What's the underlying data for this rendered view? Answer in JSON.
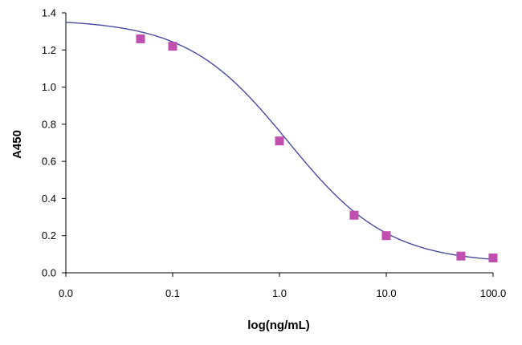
{
  "chart_data": {
    "type": "scatter",
    "title": "",
    "xlabel": "log(ng/mL)",
    "ylabel": "A450",
    "x_scale": "log",
    "x_ticks": [
      "0.0",
      "0.1",
      "1.0",
      "10.0",
      "100.0"
    ],
    "y_ticks": [
      "0.0",
      "0.2",
      "0.4",
      "0.6",
      "0.8",
      "1.0",
      "1.2",
      "1.4"
    ],
    "ylim": [
      0,
      1.4
    ],
    "grid": false,
    "legend": "none",
    "points": [
      {
        "x": 0.05,
        "y": 1.26
      },
      {
        "x": 0.1,
        "y": 1.22
      },
      {
        "x": 1,
        "y": 0.71
      },
      {
        "x": 5,
        "y": 0.31
      },
      {
        "x": 10,
        "y": 0.2
      },
      {
        "x": 50,
        "y": 0.09
      },
      {
        "x": 100,
        "y": 0.08
      }
    ],
    "fit_curve": {
      "top": 1.365,
      "bottom": 0.05,
      "ec50": 1.2,
      "hill": 0.92
    },
    "colors": {
      "marker": "#c04fb0",
      "curve": "#4a4aa0",
      "axis": "#000000"
    }
  }
}
